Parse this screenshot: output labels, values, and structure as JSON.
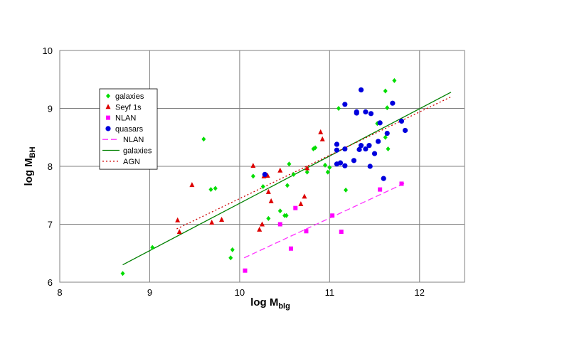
{
  "chart_data": {
    "type": "scatter",
    "x": {
      "label": "log M",
      "sub": "blg",
      "range": [
        8,
        12.5
      ],
      "ticks": [
        8,
        9,
        10,
        11,
        12
      ]
    },
    "y": {
      "label": "log M",
      "sub": "BH",
      "range": [
        6,
        10
      ],
      "ticks": [
        6,
        7,
        8,
        9,
        10
      ]
    },
    "grid": "major",
    "legend_position": "left",
    "colors": {
      "galaxies": "#00dd00",
      "seyf": "#dd0000",
      "nlan": "#ff00ff",
      "quasars": "#0000dd",
      "nlan_line": "#ff33ff",
      "galaxies_line": "#008000",
      "agn_line": "#cc0000"
    },
    "series": [
      {
        "name": "galaxies",
        "marker": "diamond",
        "color": "#00dd00",
        "points": [
          [
            8.7,
            6.15
          ],
          [
            9.03,
            6.6
          ],
          [
            9.6,
            8.47
          ],
          [
            9.68,
            7.6
          ],
          [
            9.73,
            7.62
          ],
          [
            9.9,
            6.42
          ],
          [
            9.92,
            6.56
          ],
          [
            10.15,
            7.83
          ],
          [
            10.26,
            7.65
          ],
          [
            10.32,
            7.1
          ],
          [
            10.45,
            7.23
          ],
          [
            10.5,
            7.15
          ],
          [
            10.52,
            7.15
          ],
          [
            10.53,
            7.67
          ],
          [
            10.55,
            8.04
          ],
          [
            10.6,
            7.86
          ],
          [
            10.75,
            7.9
          ],
          [
            10.82,
            8.3
          ],
          [
            10.84,
            8.32
          ],
          [
            10.95,
            8.02
          ],
          [
            10.98,
            7.9
          ],
          [
            11.0,
            7.98
          ],
          [
            11.1,
            9.0
          ],
          [
            11.18,
            7.59
          ],
          [
            11.53,
            8.74
          ],
          [
            11.62,
            9.3
          ],
          [
            11.64,
            9.01
          ],
          [
            11.65,
            8.3
          ],
          [
            11.72,
            9.48
          ],
          [
            11.62,
            8.5
          ]
        ]
      },
      {
        "name": "Seyf 1s",
        "marker": "triangle",
        "color": "#dd0000",
        "points": [
          [
            9.31,
            7.07
          ],
          [
            9.33,
            6.87
          ],
          [
            9.47,
            7.68
          ],
          [
            9.69,
            7.03
          ],
          [
            9.8,
            7.08
          ],
          [
            10.15,
            8.01
          ],
          [
            10.22,
            6.91
          ],
          [
            10.25,
            7.0
          ],
          [
            10.31,
            7.84
          ],
          [
            10.32,
            7.56
          ],
          [
            10.35,
            7.4
          ],
          [
            10.45,
            7.93
          ],
          [
            10.68,
            7.35
          ],
          [
            10.72,
            7.48
          ],
          [
            10.75,
            7.97
          ],
          [
            10.9,
            8.59
          ],
          [
            10.92,
            8.47
          ],
          [
            10.27,
            7.83
          ]
        ]
      },
      {
        "name": "NLAN",
        "marker": "square",
        "color": "#ff00ff",
        "points": [
          [
            10.06,
            6.2
          ],
          [
            10.45,
            7.0
          ],
          [
            10.57,
            6.58
          ],
          [
            10.62,
            7.28
          ],
          [
            10.74,
            6.88
          ],
          [
            11.03,
            7.15
          ],
          [
            11.13,
            6.87
          ],
          [
            11.56,
            7.6
          ],
          [
            11.8,
            7.7
          ]
        ]
      },
      {
        "name": "quasars",
        "marker": "circle",
        "color": "#0000dd",
        "points": [
          [
            10.28,
            7.86
          ],
          [
            11.08,
            8.38
          ],
          [
            11.08,
            8.28
          ],
          [
            11.08,
            8.04
          ],
          [
            11.12,
            8.06
          ],
          [
            11.17,
            9.07
          ],
          [
            11.17,
            8.3
          ],
          [
            11.17,
            8.01
          ],
          [
            11.27,
            8.1
          ],
          [
            11.3,
            8.94
          ],
          [
            11.3,
            8.92
          ],
          [
            11.33,
            8.29
          ],
          [
            11.35,
            9.32
          ],
          [
            11.35,
            8.36
          ],
          [
            11.4,
            8.94
          ],
          [
            11.4,
            8.3
          ],
          [
            11.44,
            8.36
          ],
          [
            11.45,
            8.0
          ],
          [
            11.46,
            8.91
          ],
          [
            11.5,
            8.22
          ],
          [
            11.54,
            8.43
          ],
          [
            11.56,
            8.75
          ],
          [
            11.6,
            7.79
          ],
          [
            11.64,
            8.57
          ],
          [
            11.7,
            9.09
          ],
          [
            11.8,
            8.78
          ],
          [
            11.84,
            8.62
          ]
        ]
      }
    ],
    "lines": [
      {
        "name": "NLAN",
        "style": "dashed",
        "color": "#ff33ff",
        "from": [
          10.05,
          6.42
        ],
        "to": [
          11.85,
          7.72
        ]
      },
      {
        "name": "galaxies",
        "style": "solid",
        "color": "#008000",
        "from": [
          8.7,
          6.3
        ],
        "to": [
          12.35,
          9.28
        ]
      },
      {
        "name": "AGN",
        "style": "dotted",
        "color": "#cc0000",
        "from": [
          9.3,
          6.92
        ],
        "to": [
          12.35,
          9.2
        ]
      }
    ],
    "legend": [
      {
        "label": "galaxies",
        "kind": "marker",
        "marker": "diamond",
        "color": "#00dd00"
      },
      {
        "label": "Seyf 1s",
        "kind": "marker",
        "marker": "triangle",
        "color": "#dd0000"
      },
      {
        "label": "NLAN",
        "kind": "marker",
        "marker": "square",
        "color": "#ff00ff"
      },
      {
        "label": "quasars",
        "kind": "marker",
        "marker": "circle",
        "color": "#0000dd"
      },
      {
        "label": "NLAN",
        "kind": "line",
        "style": "dashed",
        "color": "#ff33ff"
      },
      {
        "label": "galaxies",
        "kind": "line",
        "style": "solid",
        "color": "#008000"
      },
      {
        "label": "AGN",
        "kind": "line",
        "style": "dotted",
        "color": "#cc0000"
      }
    ]
  }
}
